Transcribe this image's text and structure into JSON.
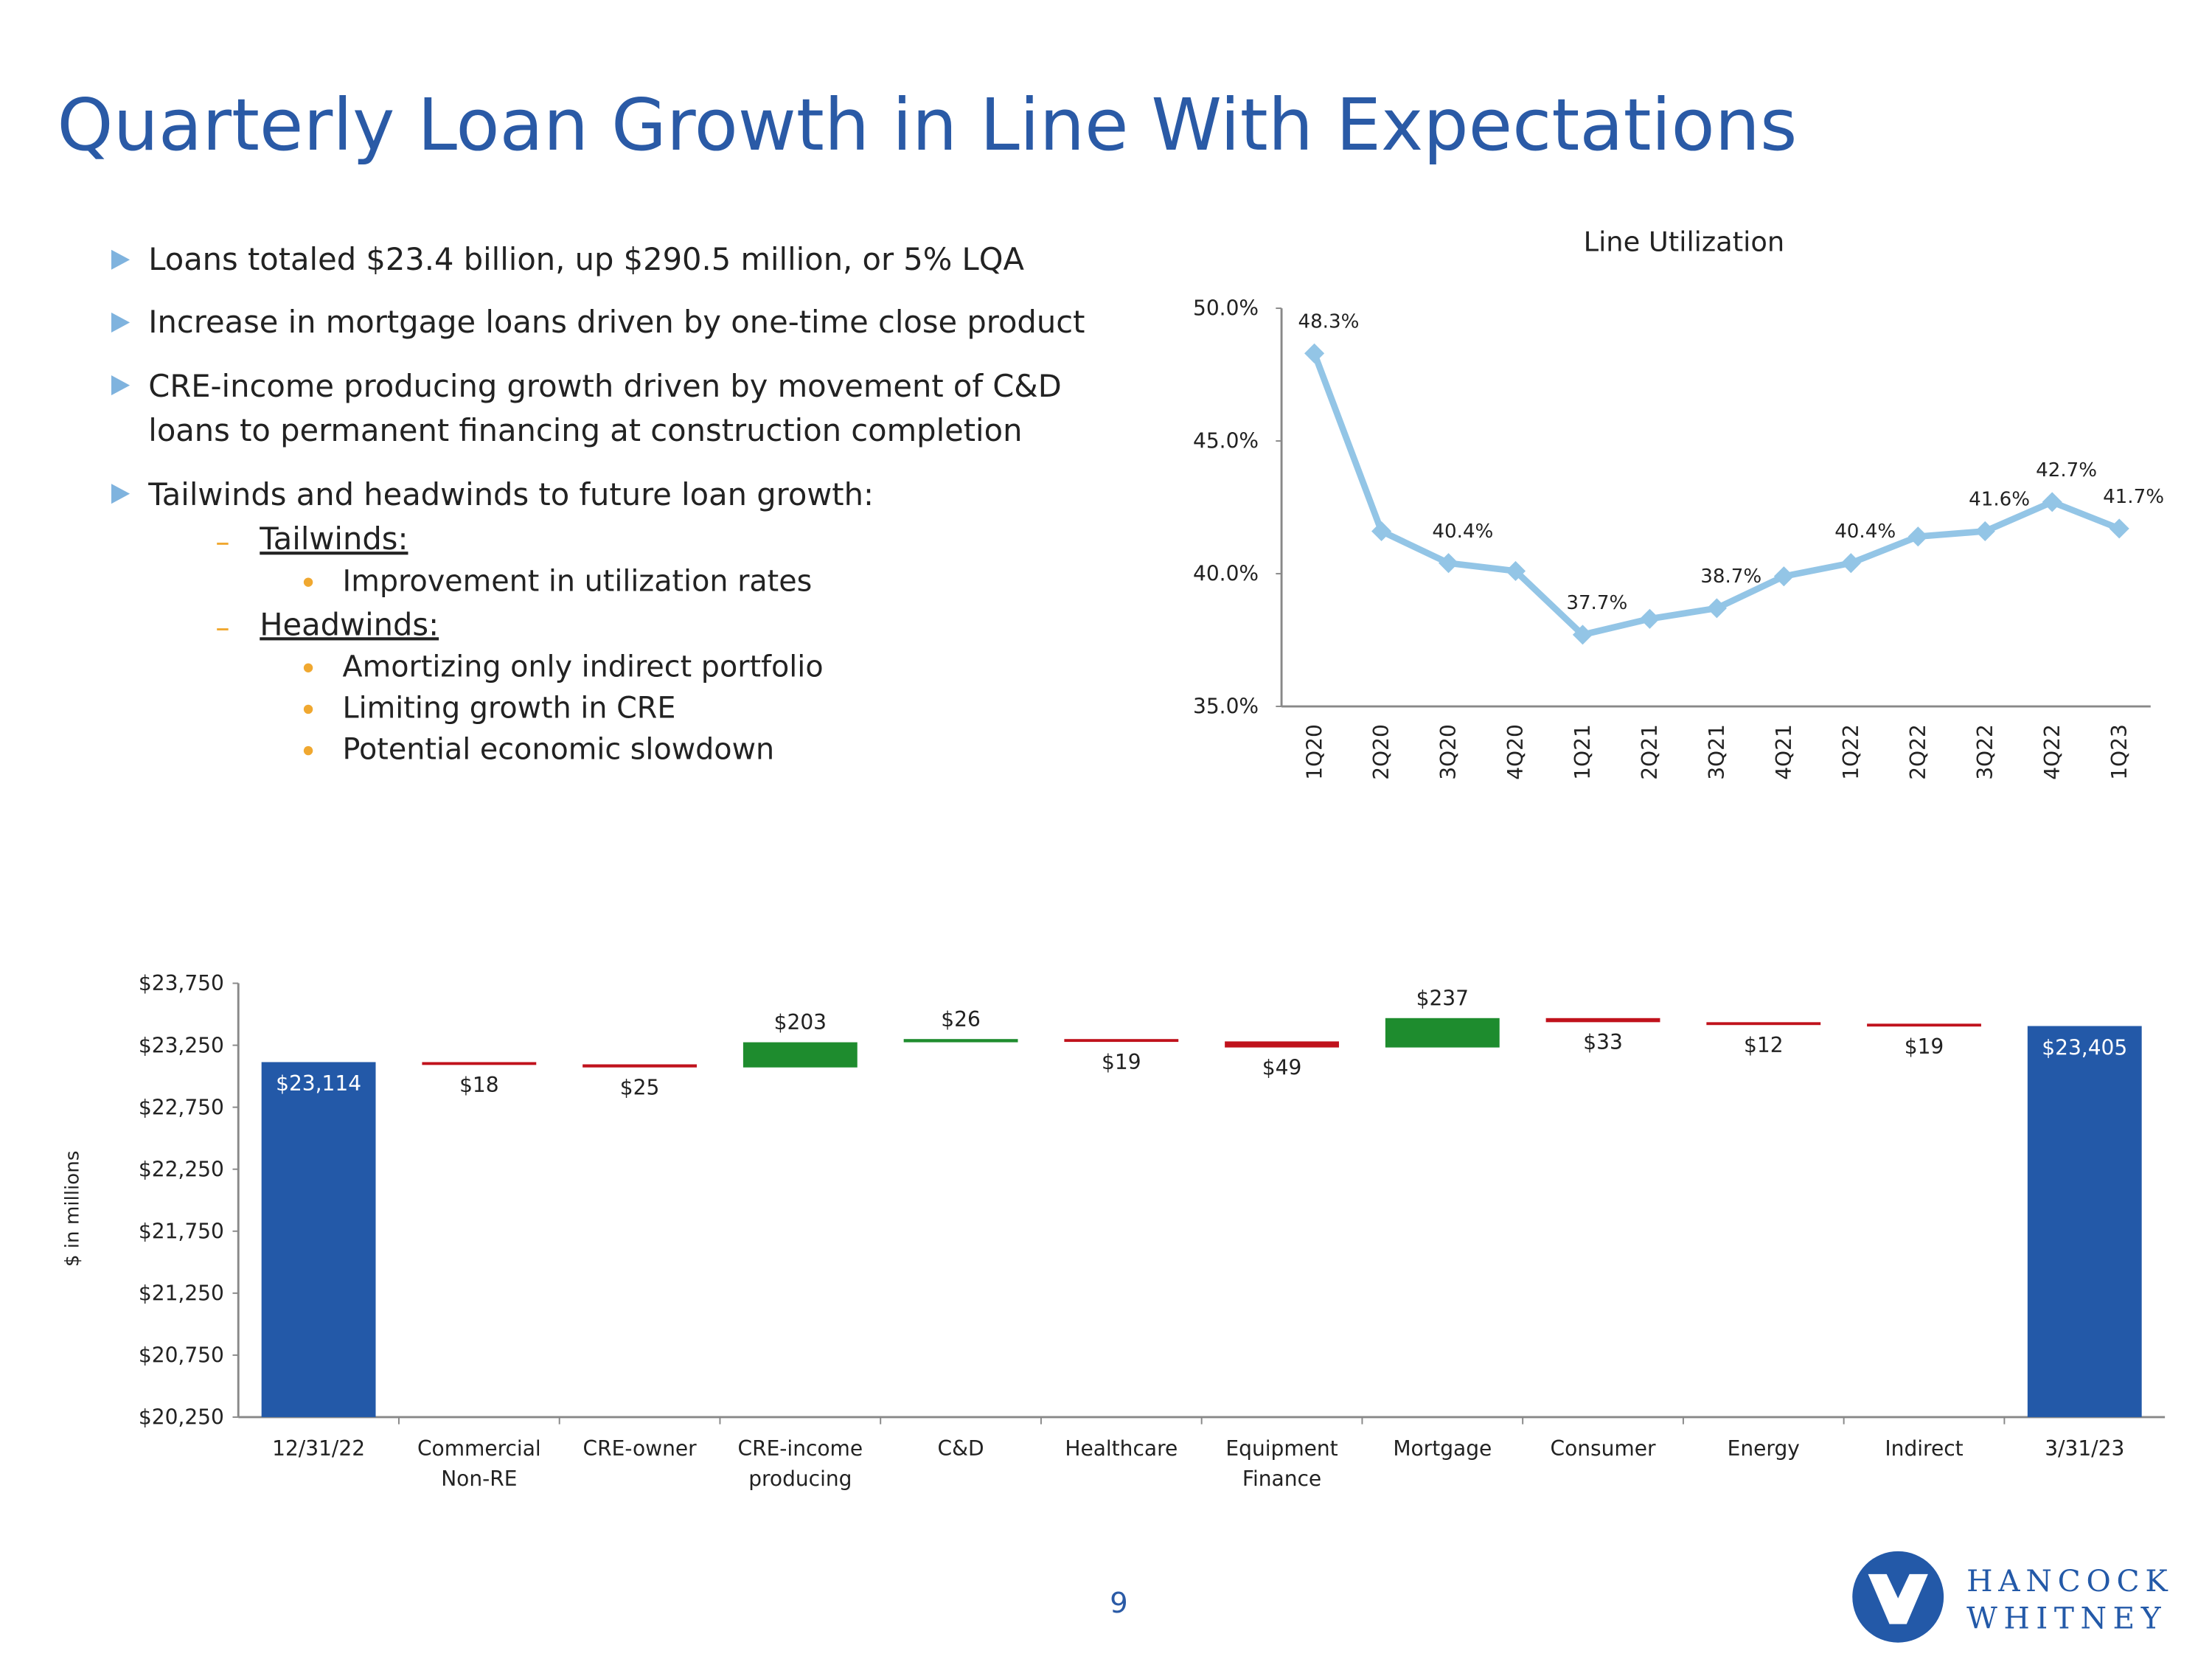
{
  "header": {
    "title": "Quarterly Loan Growth in Line With Expectations"
  },
  "bullets": [
    {
      "lines": [
        "Loans totaled $23.4 billion, up $290.5 million, or 5% LQA"
      ]
    },
    {
      "lines": [
        "Increase in mortgage loans driven by one-time close product"
      ]
    },
    {
      "lines": [
        "CRE-income producing growth driven by movement of C&D",
        "loans to permanent financing at construction completion"
      ]
    },
    {
      "lines": [
        "Tailwinds and headwinds to future loan growth:"
      ]
    }
  ],
  "sub_bullets": [
    {
      "label": "Tailwinds:",
      "items": [
        "Improvement in utilization rates"
      ]
    },
    {
      "label": "Headwinds:",
      "items": [
        "Amortizing only indirect portfolio",
        "Limiting growth in CRE",
        "Potential economic slowdown"
      ]
    }
  ],
  "chart_data": [
    {
      "type": "line",
      "title": "Line Utilization",
      "categories": [
        "1Q20",
        "2Q20",
        "3Q20",
        "4Q20",
        "1Q21",
        "2Q21",
        "3Q21",
        "4Q21",
        "1Q22",
        "2Q22",
        "3Q22",
        "4Q22",
        "1Q23"
      ],
      "values": [
        48.3,
        41.6,
        40.4,
        40.1,
        37.7,
        38.3,
        38.7,
        39.9,
        40.4,
        41.4,
        41.6,
        42.7,
        41.7
      ],
      "value_labels": [
        "48.3%",
        null,
        "40.4%",
        null,
        "37.7%",
        null,
        "38.7%",
        null,
        "40.4%",
        null,
        "41.6%",
        "42.7%",
        "41.7%"
      ],
      "color": "#93c5e6",
      "ylim": [
        35,
        50
      ],
      "yticks": [
        {
          "value": 35,
          "label": "35.0%"
        },
        {
          "value": 40,
          "label": "40.0%"
        },
        {
          "value": 45,
          "label": "45.0%"
        },
        {
          "value": 50,
          "label": "50.0%"
        }
      ]
    },
    {
      "type": "waterfall",
      "y_label": "$ in millions",
      "categories": [
        [
          "12/31/22"
        ],
        [
          "Commercial",
          "Non-RE"
        ],
        [
          "CRE-owner"
        ],
        [
          "CRE-income",
          "producing"
        ],
        [
          "C&D"
        ],
        [
          "Healthcare"
        ],
        [
          "Equipment",
          "Finance"
        ],
        [
          "Mortgage"
        ],
        [
          "Consumer"
        ],
        [
          "Energy"
        ],
        [
          "Indirect"
        ],
        [
          "3/31/23"
        ]
      ],
      "measure": [
        "total",
        "relative",
        "relative",
        "relative",
        "relative",
        "relative",
        "relative",
        "relative",
        "relative",
        "relative",
        "relative",
        "total"
      ],
      "values": [
        23114,
        -18,
        -25,
        203,
        26,
        -19,
        -49,
        237,
        -33,
        -12,
        -19,
        23405
      ],
      "value_labels": [
        "$23,114",
        "$18",
        "$25",
        "$203",
        "$26",
        "$19",
        "$49",
        "$237",
        "$33",
        "$12",
        "$19",
        "$23,405"
      ],
      "colors": {
        "total": "#2359a8",
        "increase": "#1e8c2e",
        "decrease": "#c0121c"
      },
      "ylim": [
        20250,
        23750
      ],
      "yticks": [
        {
          "value": 20250,
          "label": "$20,250"
        },
        {
          "value": 20750,
          "label": "$20,750"
        },
        {
          "value": 21250,
          "label": "$21,250"
        },
        {
          "value": 21750,
          "label": "$21,750"
        },
        {
          "value": 22250,
          "label": "$22,250"
        },
        {
          "value": 22750,
          "label": "$22,750"
        },
        {
          "value": 23250,
          "label": "$23,250"
        },
        {
          "value": 23750,
          "label": "$23,750"
        }
      ]
    }
  ],
  "footer": {
    "page": "9",
    "logo": [
      "HANCOCK",
      "WHITNEY"
    ]
  }
}
